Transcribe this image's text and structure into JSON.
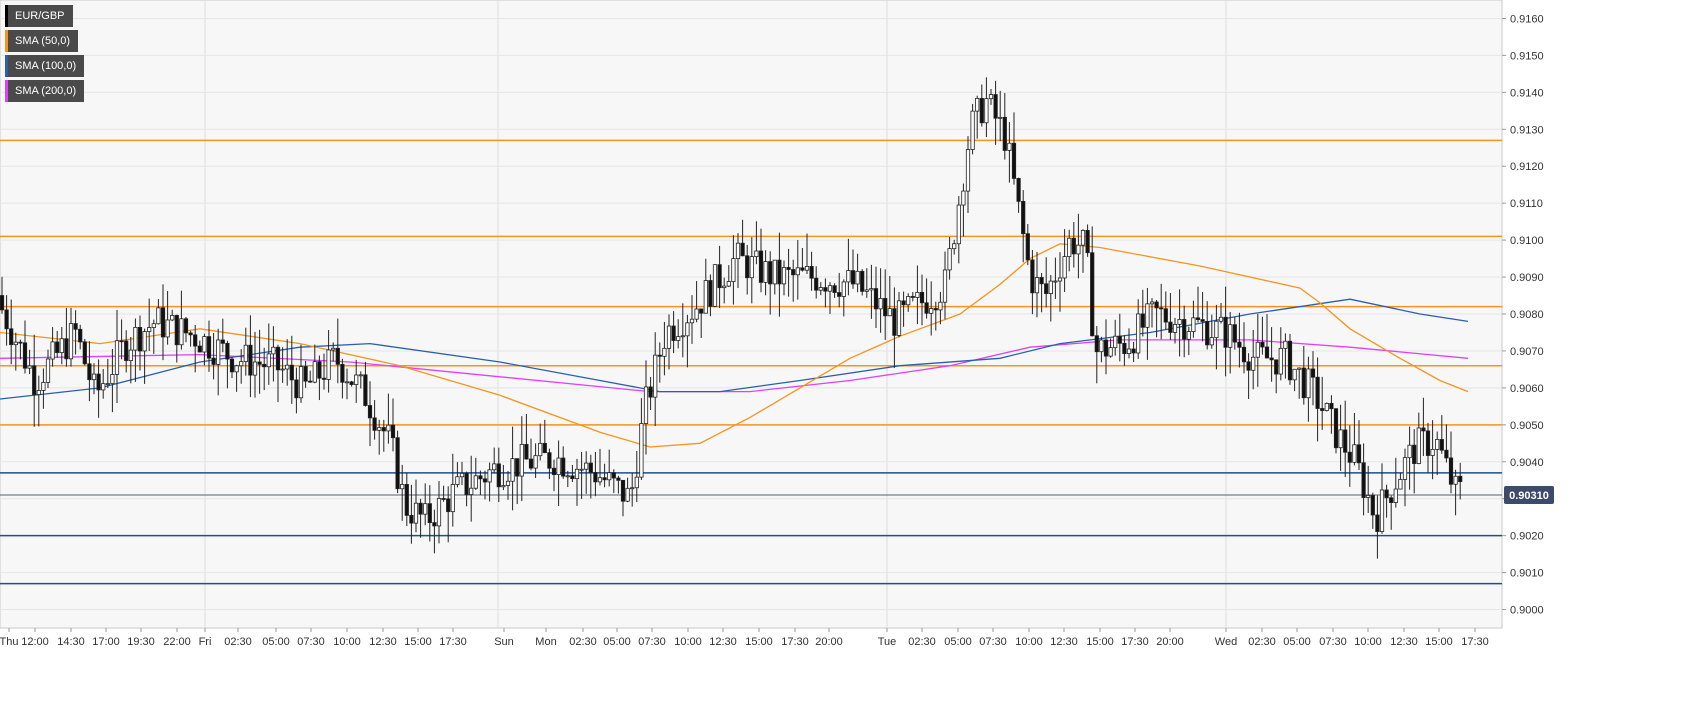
{
  "chart_data": {
    "type": "candlestick",
    "symbol": "EUR/GBP",
    "legend": [
      {
        "label": "EUR/GBP",
        "color": "#000000"
      },
      {
        "label": "SMA (50,0)",
        "color": "#f7941d"
      },
      {
        "label": "SMA (100,0)",
        "color": "#2b5fad"
      },
      {
        "label": "SMA (200,0)",
        "color": "#e040fb"
      }
    ],
    "ylim": [
      0.8995,
      0.9165
    ],
    "y_ticks": [
      "0.9000",
      "0.9010",
      "0.9020",
      "0.9030",
      "0.9040",
      "0.9050",
      "0.9060",
      "0.9070",
      "0.9080",
      "0.9090",
      "0.9100",
      "0.9110",
      "0.9120",
      "0.9130",
      "0.9140",
      "0.9150",
      "0.9160"
    ],
    "x_ticks": [
      "Thu",
      "12:00",
      "14:30",
      "17:00",
      "19:30",
      "22:00",
      "Fri",
      "02:30",
      "05:00",
      "07:30",
      "10:00",
      "12:30",
      "15:00",
      "17:30",
      "Sun",
      "Mon",
      "02:30",
      "05:00",
      "07:30",
      "10:00",
      "12:30",
      "15:00",
      "17:30",
      "20:00",
      "Tue",
      "02:30",
      "05:00",
      "07:30",
      "10:00",
      "12:30",
      "15:00",
      "17:30",
      "20:00",
      "Wed",
      "02:30",
      "05:00",
      "07:30",
      "10:00",
      "12:30",
      "15:00",
      "17:30"
    ],
    "current_price": "0.90310",
    "resistance_levels": [
      0.9127,
      0.9101,
      0.9082,
      0.9066,
      0.905
    ],
    "support_levels": [
      0.9037,
      0.902,
      0.9007
    ],
    "last_price_line": 0.9031,
    "price_path": [
      [
        0,
        0.9085
      ],
      [
        40,
        0.9062
      ],
      [
        80,
        0.9075
      ],
      [
        100,
        0.9058
      ],
      [
        130,
        0.9072
      ],
      [
        160,
        0.9078
      ],
      [
        200,
        0.9074
      ],
      [
        240,
        0.9068
      ],
      [
        280,
        0.9066
      ],
      [
        310,
        0.906
      ],
      [
        340,
        0.9068
      ],
      [
        370,
        0.9058
      ],
      [
        395,
        0.9045
      ],
      [
        410,
        0.9028
      ],
      [
        430,
        0.9024
      ],
      [
        460,
        0.9032
      ],
      [
        500,
        0.9038
      ],
      [
        530,
        0.904
      ],
      [
        560,
        0.9041
      ],
      [
        600,
        0.9037
      ],
      [
        635,
        0.903
      ],
      [
        650,
        0.9055
      ],
      [
        670,
        0.9075
      ],
      [
        700,
        0.9082
      ],
      [
        740,
        0.9095
      ],
      [
        780,
        0.909
      ],
      [
        820,
        0.909
      ],
      [
        860,
        0.9088
      ],
      [
        900,
        0.9078
      ],
      [
        920,
        0.9082
      ],
      [
        950,
        0.9088
      ],
      [
        975,
        0.913
      ],
      [
        990,
        0.9138
      ],
      [
        1010,
        0.9128
      ],
      [
        1035,
        0.909
      ],
      [
        1050,
        0.9085
      ],
      [
        1075,
        0.91
      ],
      [
        1090,
        0.9098
      ],
      [
        1100,
        0.907
      ],
      [
        1130,
        0.9072
      ],
      [
        1160,
        0.908
      ],
      [
        1190,
        0.9078
      ],
      [
        1230,
        0.9075
      ],
      [
        1260,
        0.9068
      ],
      [
        1290,
        0.9068
      ],
      [
        1320,
        0.9058
      ],
      [
        1340,
        0.9048
      ],
      [
        1360,
        0.904
      ],
      [
        1380,
        0.9025
      ],
      [
        1400,
        0.9035
      ],
      [
        1420,
        0.9044
      ],
      [
        1440,
        0.9046
      ],
      [
        1460,
        0.9032
      ]
    ],
    "sma50": [
      [
        0,
        0.9075
      ],
      [
        100,
        0.9072
      ],
      [
        200,
        0.9076
      ],
      [
        300,
        0.9072
      ],
      [
        400,
        0.9066
      ],
      [
        500,
        0.9058
      ],
      [
        600,
        0.9048
      ],
      [
        650,
        0.9044
      ],
      [
        700,
        0.9045
      ],
      [
        750,
        0.9052
      ],
      [
        800,
        0.906
      ],
      [
        850,
        0.9068
      ],
      [
        900,
        0.9074
      ],
      [
        960,
        0.908
      ],
      [
        1000,
        0.9088
      ],
      [
        1030,
        0.9095
      ],
      [
        1060,
        0.9099
      ],
      [
        1100,
        0.9098
      ],
      [
        1200,
        0.9093
      ],
      [
        1300,
        0.9087
      ],
      [
        1320,
        0.9083
      ],
      [
        1350,
        0.9076
      ],
      [
        1400,
        0.9068
      ],
      [
        1440,
        0.9062
      ],
      [
        1468,
        0.9059
      ]
    ],
    "sma100": [
      [
        0,
        0.9057
      ],
      [
        100,
        0.906
      ],
      [
        200,
        0.9067
      ],
      [
        300,
        0.9071
      ],
      [
        370,
        0.9072
      ],
      [
        500,
        0.9067
      ],
      [
        600,
        0.9062
      ],
      [
        660,
        0.9059
      ],
      [
        720,
        0.9059
      ],
      [
        800,
        0.9062
      ],
      [
        900,
        0.9066
      ],
      [
        1000,
        0.9068
      ],
      [
        1060,
        0.9072
      ],
      [
        1150,
        0.9075
      ],
      [
        1250,
        0.908
      ],
      [
        1350,
        0.9084
      ],
      [
        1420,
        0.908
      ],
      [
        1468,
        0.9078
      ]
    ],
    "sma200": [
      [
        0,
        0.9068
      ],
      [
        200,
        0.9069
      ],
      [
        350,
        0.9067
      ],
      [
        500,
        0.9063
      ],
      [
        650,
        0.9059
      ],
      [
        750,
        0.9059
      ],
      [
        850,
        0.9062
      ],
      [
        950,
        0.9066
      ],
      [
        1030,
        0.9071
      ],
      [
        1120,
        0.9073
      ],
      [
        1250,
        0.9073
      ],
      [
        1350,
        0.9071
      ],
      [
        1468,
        0.9068
      ]
    ]
  }
}
